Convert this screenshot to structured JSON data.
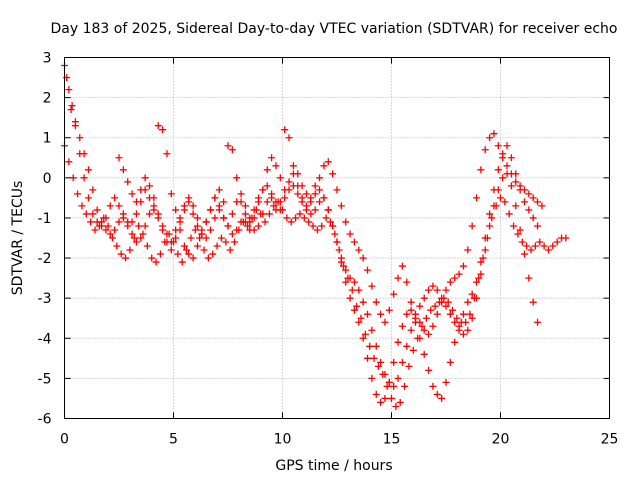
{
  "chart_data": {
    "type": "scatter",
    "title": "Day 183 of 2025, Sidereal Day-to-day VTEC variation (SDTVAR) for receiver echo",
    "xlabel": "GPS time / hours",
    "ylabel": "SDTVAR / TECUs",
    "xlim": [
      0,
      25
    ],
    "ylim": [
      -6,
      3
    ],
    "x_ticks": [
      "0",
      "5",
      "10",
      "15",
      "20",
      "25"
    ],
    "y_ticks": [
      "3",
      "2",
      "1",
      "0",
      "-1",
      "-2",
      "-3",
      "-4",
      "-5",
      "-6"
    ],
    "grid": true,
    "marker": "plus",
    "color": "#ff0000",
    "series": [
      {
        "x": [
          0.0,
          0.1,
          0.2,
          0.35,
          0.5,
          0.7,
          0.9,
          1.1,
          1.3,
          1.5,
          1.7,
          1.9,
          2.1,
          2.3,
          2.5,
          2.7,
          2.9,
          3.1,
          3.3,
          3.5,
          3.7,
          3.9,
          4.1,
          4.3,
          4.5,
          4.7,
          4.9,
          5.1,
          5.3,
          5.5,
          5.7,
          5.9,
          6.1,
          6.3,
          6.5,
          6.7,
          6.9,
          7.1,
          7.3,
          7.5,
          7.7,
          7.9,
          8.1,
          8.3,
          8.5,
          8.7,
          8.9,
          9.1,
          9.3,
          9.5,
          9.7,
          9.9,
          10.1,
          10.3,
          10.5,
          10.7,
          10.9,
          11.1,
          11.3,
          11.5,
          11.7,
          11.9,
          12.1,
          12.3,
          12.5,
          12.7,
          12.9,
          13.1,
          13.3,
          13.5,
          13.7,
          13.9,
          14.1,
          14.3,
          14.5,
          14.7,
          14.9,
          15.1,
          15.3,
          15.5,
          15.7,
          15.9,
          16.1,
          16.3,
          16.5,
          16.7,
          16.9,
          17.1,
          17.3,
          17.5,
          17.7,
          17.9,
          18.1,
          18.3,
          18.5,
          18.7,
          18.9,
          19.1,
          19.3,
          19.5,
          19.7,
          19.9,
          20.1,
          20.3,
          20.5,
          20.7,
          20.9,
          21.1,
          21.3,
          21.5,
          21.7,
          21.9
        ],
        "y": [
          2.8,
          2.5,
          2.2,
          1.8,
          1.3,
          0.6,
          0.0,
          -0.5,
          -0.9,
          -1.1,
          -1.2,
          -1.0,
          -0.7,
          -0.5,
          -0.7,
          -1.0,
          -1.2,
          -1.1,
          -0.9,
          -0.6,
          -0.3,
          -0.5,
          -0.8,
          -1.0,
          -1.3,
          -1.6,
          -1.8,
          -1.5,
          -1.1,
          -0.8,
          -0.6,
          -0.9,
          -1.2,
          -1.4,
          -1.1,
          -0.8,
          -0.5,
          -0.7,
          -1.0,
          -1.2,
          -0.9,
          -0.6,
          -0.4,
          -0.7,
          -1.0,
          -0.8,
          -0.5,
          -0.3,
          -0.2,
          -0.5,
          -0.8,
          -0.6,
          -0.3,
          -0.1,
          0.1,
          -0.2,
          -0.5,
          -0.7,
          -0.6,
          -0.4,
          -0.3,
          -0.5,
          -0.8,
          -1.2,
          -1.6,
          -2.1,
          -2.6,
          -3.0,
          -3.3,
          -3.6,
          -4.0,
          -4.5,
          -5.0,
          -5.4,
          -5.6,
          -5.5,
          -5.1,
          -4.6,
          -4.1,
          -3.7,
          -3.4,
          -3.3,
          -3.4,
          -3.6,
          -3.8,
          -3.9,
          -3.7,
          -3.4,
          -3.1,
          -2.8,
          -2.6,
          -2.5,
          -2.4,
          -2.2,
          -1.8,
          -1.2,
          -0.5,
          0.2,
          0.7,
          1.0,
          1.1,
          0.8,
          0.5,
          0.3,
          0.1,
          -0.1,
          -0.2,
          -0.3,
          -0.4,
          -0.5,
          -0.6,
          -0.7
        ]
      },
      {
        "x": [
          0.0,
          0.2,
          0.4,
          0.6,
          0.8,
          1.0,
          1.2,
          1.4,
          1.6,
          1.8,
          2.0,
          2.2,
          2.4,
          2.6,
          2.8,
          3.0,
          3.2,
          3.4,
          3.6,
          3.8,
          4.0,
          4.2,
          4.4,
          4.6,
          4.8,
          5.0,
          5.2,
          5.4,
          5.6,
          5.8,
          6.0,
          6.2,
          6.4,
          6.6,
          6.8,
          7.0,
          7.2,
          7.4,
          7.6,
          7.8,
          8.0,
          8.2,
          8.4,
          8.6,
          8.8,
          9.0,
          9.2,
          9.4,
          9.6,
          9.8,
          10.0,
          10.2,
          10.4,
          10.6,
          10.8,
          11.0,
          11.2,
          11.4,
          11.6,
          11.8,
          12.0,
          12.2,
          12.4,
          12.6,
          12.8,
          13.0,
          13.2,
          13.4,
          13.6,
          13.8,
          14.0,
          14.2,
          14.4,
          14.6,
          14.8,
          15.0,
          15.2,
          15.4,
          15.6,
          15.8,
          16.0,
          16.2,
          16.4,
          16.6,
          16.8,
          17.0,
          17.2,
          17.4,
          17.6,
          17.8,
          18.0,
          18.2,
          18.4,
          18.6,
          18.8,
          19.0,
          19.2,
          19.4,
          19.6,
          19.8,
          20.0,
          20.2,
          20.4,
          20.6,
          20.8,
          21.0,
          21.2,
          21.4,
          21.6,
          21.8,
          22.0,
          22.2,
          22.4,
          22.6,
          22.8,
          23.0
        ],
        "y": [
          0.8,
          0.4,
          0.0,
          -0.4,
          -0.7,
          -0.9,
          -1.1,
          -1.3,
          -1.2,
          -1.0,
          -1.2,
          -1.5,
          -1.7,
          -1.9,
          -2.0,
          -1.8,
          -1.5,
          -1.2,
          -1.4,
          -1.7,
          -2.0,
          -2.1,
          -1.9,
          -1.6,
          -1.4,
          -1.6,
          -1.9,
          -2.1,
          -1.8,
          -1.5,
          -1.3,
          -1.5,
          -1.8,
          -2.0,
          -1.9,
          -1.7,
          -1.5,
          -1.6,
          -1.8,
          -1.6,
          -1.3,
          -1.1,
          -1.2,
          -1.0,
          -0.8,
          -0.9,
          -1.1,
          -0.9,
          -0.7,
          -0.6,
          -0.8,
          -1.0,
          -1.1,
          -1.0,
          -0.9,
          -1.0,
          -1.1,
          -1.2,
          -1.3,
          -1.2,
          -1.0,
          -1.1,
          -1.4,
          -1.8,
          -2.2,
          -2.5,
          -2.8,
          -3.2,
          -3.5,
          -3.9,
          -4.2,
          -4.5,
          -4.7,
          -4.9,
          -5.2,
          -5.5,
          -5.7,
          -5.6,
          -5.2,
          -4.7,
          -4.3,
          -4.0,
          -3.7,
          -3.5,
          -3.3,
          -3.2,
          -3.1,
          -3.0,
          -3.1,
          -3.3,
          -3.5,
          -3.6,
          -3.6,
          -3.4,
          -3.0,
          -2.5,
          -2.0,
          -1.5,
          -1.0,
          -0.7,
          -0.5,
          -0.6,
          -0.9,
          -1.2,
          -1.4,
          -1.6,
          -1.7,
          -1.8,
          -1.7,
          -1.6,
          -1.7,
          -1.8,
          -1.7,
          -1.6,
          -1.5,
          -1.5
        ]
      },
      {
        "x": [
          0.3,
          0.5,
          0.7,
          0.9,
          1.1,
          1.3,
          1.5,
          1.7,
          1.9,
          2.1,
          2.3,
          2.5,
          2.7,
          2.9,
          3.1,
          3.3,
          3.5,
          3.7,
          3.9,
          4.1,
          4.3,
          4.5,
          4.7,
          4.9,
          5.1,
          5.3,
          5.5,
          5.7,
          5.9,
          6.1,
          6.3,
          6.5,
          6.7,
          6.9,
          7.1,
          7.3,
          7.5,
          7.7,
          7.9,
          8.1,
          8.3,
          8.5,
          8.7,
          8.9,
          9.1,
          9.3,
          9.5,
          9.7,
          9.9,
          10.1,
          10.3,
          10.5,
          10.7,
          10.9,
          11.1,
          11.3,
          11.5,
          11.7,
          11.9,
          12.1,
          12.3,
          12.5,
          12.7,
          12.9,
          13.1,
          13.3,
          13.5,
          13.7,
          13.9,
          14.1,
          14.3,
          14.5,
          14.7,
          14.9,
          15.1,
          15.3,
          15.5,
          15.7,
          15.9,
          16.1,
          16.3,
          16.5,
          16.7,
          16.9,
          17.1,
          17.3,
          17.5,
          17.7,
          17.9,
          18.1,
          18.3,
          18.5,
          18.7,
          18.9,
          19.1,
          19.3,
          19.5,
          19.7,
          19.9,
          20.1,
          20.3,
          20.5,
          20.7,
          20.9,
          21.1,
          21.3,
          21.5,
          21.7
        ],
        "y": [
          1.7,
          1.4,
          1.0,
          0.6,
          0.2,
          -0.3,
          -0.8,
          -1.1,
          -1.3,
          -1.4,
          -1.3,
          -1.1,
          -0.9,
          -1.1,
          -1.4,
          -1.6,
          -1.5,
          -1.2,
          -0.9,
          -0.7,
          -0.9,
          -1.2,
          -1.4,
          -1.6,
          -1.3,
          -1.0,
          -0.7,
          -0.5,
          -0.7,
          -1.0,
          -1.3,
          -1.5,
          -1.3,
          -1.0,
          -0.8,
          -1.0,
          -1.2,
          -1.4,
          -1.3,
          -1.1,
          -0.9,
          -1.1,
          -1.3,
          -1.2,
          -0.9,
          -0.6,
          -0.4,
          -0.6,
          -0.8,
          -0.5,
          -0.3,
          -0.2,
          -0.4,
          -0.6,
          -0.8,
          -0.9,
          -0.8,
          -0.6,
          -0.5,
          -0.8,
          -1.2,
          -1.6,
          -2.0,
          -2.3,
          -2.5,
          -2.6,
          -2.8,
          -3.1,
          -3.4,
          -3.8,
          -4.2,
          -4.6,
          -4.9,
          -5.1,
          -5.2,
          -5.0,
          -4.6,
          -4.2,
          -3.8,
          -3.5,
          -3.2,
          -3.0,
          -2.8,
          -2.7,
          -2.8,
          -3.0,
          -3.2,
          -3.4,
          -3.6,
          -3.8,
          -3.9,
          -3.8,
          -3.5,
          -3.0,
          -2.4,
          -1.8,
          -1.2,
          -0.7,
          -0.3,
          0.0,
          0.1,
          -0.2,
          -0.7,
          -1.3,
          -1.9,
          -2.5,
          -3.1,
          -3.6
        ]
      },
      {
        "x": [
          2.5,
          2.7,
          2.9,
          3.1,
          3.3,
          3.5,
          3.7,
          3.9,
          4.1,
          4.3,
          4.5,
          4.7,
          4.9,
          5.1,
          5.3,
          5.5,
          5.7,
          5.9,
          6.1,
          6.3,
          6.5,
          6.7,
          6.9,
          7.1,
          7.3,
          7.5,
          7.7,
          7.9,
          8.1,
          8.3,
          8.5,
          8.7,
          8.9,
          9.1,
          9.3,
          9.5,
          9.7,
          9.9,
          10.1,
          10.3,
          10.5,
          10.7,
          10.9,
          11.1,
          11.3,
          11.5,
          11.7,
          11.9,
          12.1,
          12.3,
          12.5,
          12.7,
          12.9,
          13.1,
          13.3,
          13.5,
          13.7,
          13.9,
          14.1,
          14.3,
          14.5,
          14.7,
          14.9,
          15.1,
          15.3,
          15.5,
          15.7,
          15.9,
          16.1,
          16.3,
          16.5,
          16.7,
          16.9,
          17.1,
          17.3,
          17.5,
          17.7,
          17.9,
          18.1,
          18.3,
          18.5,
          18.7,
          18.9,
          19.1,
          19.3,
          19.5,
          19.7,
          19.9,
          20.1,
          20.3,
          20.5,
          20.7,
          20.9,
          21.1,
          21.3,
          21.5,
          21.7
        ],
        "y": [
          0.5,
          0.2,
          -0.1,
          -0.4,
          -0.6,
          -0.3,
          0.0,
          -0.2,
          -0.5,
          1.3,
          1.2,
          0.6,
          -0.4,
          -0.8,
          -1.3,
          -1.7,
          -1.9,
          -2.0,
          -1.7,
          -1.4,
          -1.1,
          -0.8,
          -0.5,
          -0.3,
          -0.6,
          0.8,
          0.7,
          0.0,
          -0.6,
          -1.1,
          -1.3,
          -1.0,
          -0.6,
          -0.3,
          0.2,
          0.5,
          0.3,
          0.0,
          1.2,
          1.0,
          0.3,
          0.1,
          -0.2,
          -0.4,
          -0.5,
          -0.2,
          0.0,
          0.3,
          0.4,
          0.1,
          -0.3,
          -0.7,
          -1.1,
          -1.4,
          -1.6,
          -1.8,
          -2.0,
          -2.3,
          -2.7,
          -3.1,
          -3.4,
          -3.6,
          -3.3,
          -2.9,
          -2.5,
          -2.2,
          -2.6,
          -3.1,
          -3.6,
          -4.0,
          -4.4,
          -4.8,
          -5.2,
          -5.4,
          -5.5,
          -5.1,
          -4.6,
          -4.1,
          -3.7,
          -3.4,
          -3.1,
          -2.9,
          -2.6,
          -2.1,
          -1.5,
          -0.9,
          -0.3,
          0.2,
          0.6,
          0.8,
          0.5,
          0.1,
          -0.3,
          -0.6,
          -0.8,
          -1.0,
          -1.2
        ]
      }
    ]
  }
}
